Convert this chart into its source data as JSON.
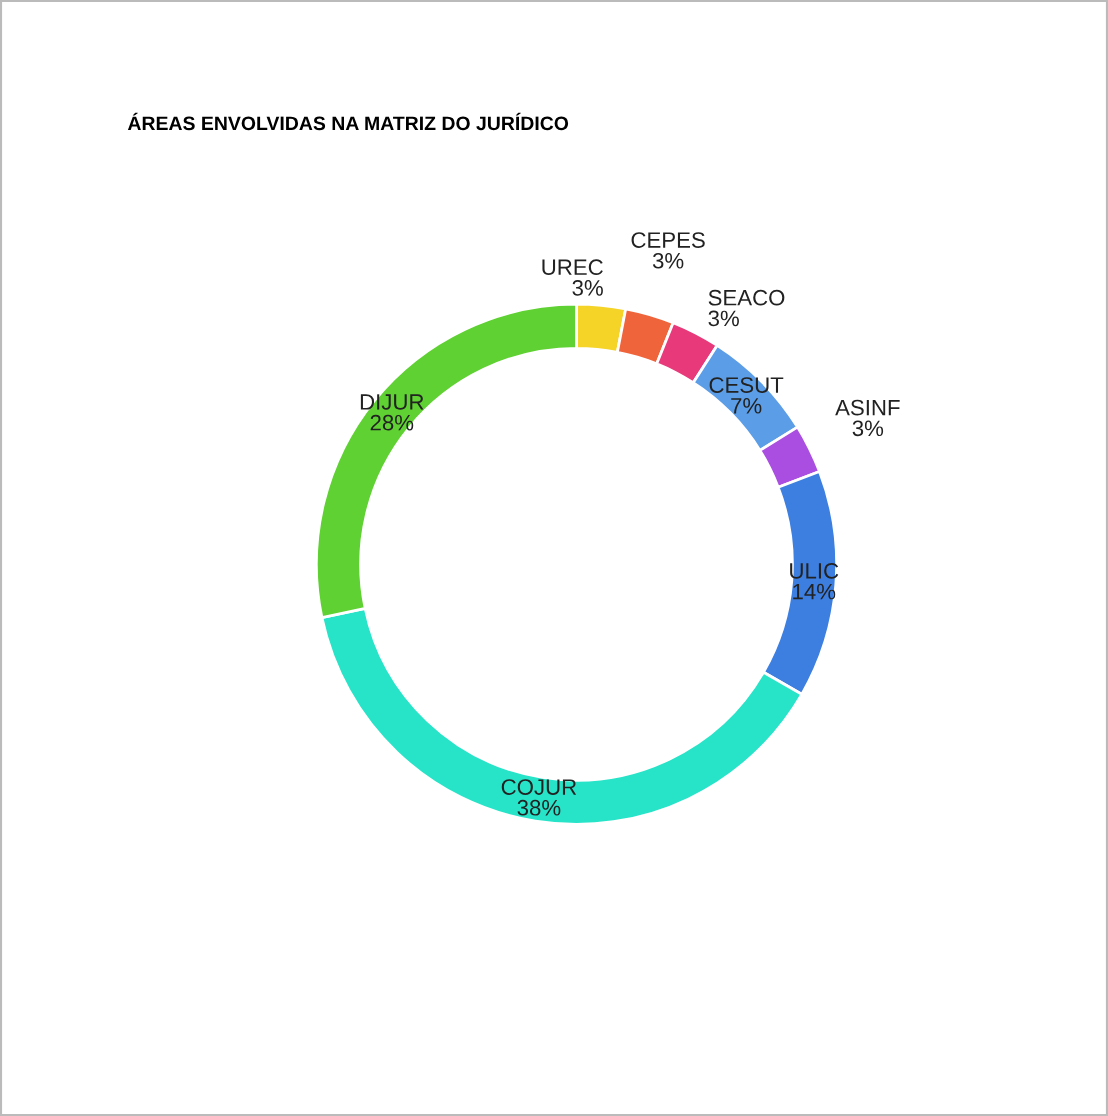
{
  "chart_data": {
    "type": "donut",
    "title": "ÁREAS ENVOLVIDAS NA MATRIZ DO JURÍDICO",
    "categories": [
      "UREC",
      "CEPES",
      "SEACO",
      "CESUT",
      "ASINF",
      "ULIC",
      "COJUR",
      "DIJUR"
    ],
    "values": [
      3,
      3,
      3,
      7,
      3,
      14,
      38,
      28
    ],
    "value_labels": [
      "3%",
      "3%",
      "3%",
      "7%",
      "3%",
      "14%",
      "38%",
      "28%"
    ],
    "colors": [
      "#f5d327",
      "#f0643c",
      "#e8397a",
      "#5b9de6",
      "#a94ee0",
      "#3d7fe0",
      "#27e3c8",
      "#5fd132"
    ],
    "legend": false
  }
}
